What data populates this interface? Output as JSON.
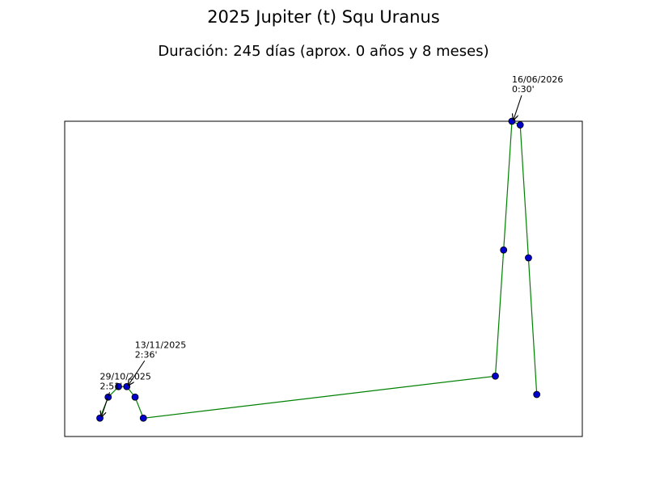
{
  "chart_data": {
    "type": "line",
    "title": "2025 Jupiter (t) Squ Uranus",
    "subtitle": "Duración: 245 días (aprox. 0 años y 8 meses)",
    "xlabel": "",
    "ylabel": "",
    "show_x_ticks": false,
    "show_y_ticks": false,
    "grid": false,
    "xlim": [
      0,
      250
    ],
    "ylim": [
      0,
      60
    ],
    "series": [
      {
        "line_color": "#008000",
        "marker_color": "#0000cc",
        "marker_edge_color": "#000000",
        "points": [
          {
            "x": 17,
            "y": 3.5
          },
          {
            "x": 21,
            "y": 7.5
          },
          {
            "x": 26,
            "y": 9.5
          },
          {
            "x": 30,
            "y": 9.5
          },
          {
            "x": 34,
            "y": 7.5
          },
          {
            "x": 38,
            "y": 3.5
          },
          {
            "x": 208,
            "y": 11.5
          },
          {
            "x": 212,
            "y": 35.5
          },
          {
            "x": 216,
            "y": 60
          },
          {
            "x": 220,
            "y": 59.3
          },
          {
            "x": 224,
            "y": 34
          },
          {
            "x": 228,
            "y": 8
          }
        ]
      }
    ],
    "annotations": [
      {
        "line1": "29/10/2025",
        "line2": "2:51'",
        "target_index": 0,
        "text_dx": 0,
        "text_dy": 40
      },
      {
        "line1": "13/11/2025",
        "line2": "2:36'",
        "target_index": 3,
        "text_dx": 10,
        "text_dy": 40
      },
      {
        "line1": "16/06/2026",
        "line2": "0:30'",
        "target_index": 8,
        "text_dx": 0,
        "text_dy": 40
      }
    ]
  }
}
